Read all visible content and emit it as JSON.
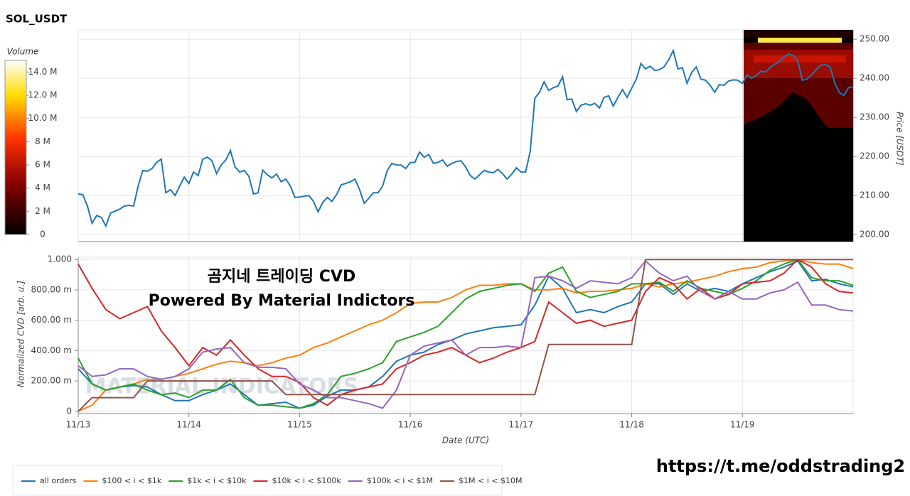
{
  "chart_data": [
    {
      "type": "line",
      "title": "SOL_USDT",
      "ylabel": "Price [USDT]",
      "yaxis_side": "right",
      "color": "#1f77b4",
      "grid": true,
      "xlim": [
        0,
        168
      ],
      "xticks": [
        0,
        24,
        48,
        72,
        96,
        120,
        144
      ],
      "ylim": [
        198.2,
        252.4
      ],
      "yticks": [
        {
          "value": 200,
          "label": "200.00"
        },
        {
          "value": 210,
          "label": "210.00"
        },
        {
          "value": 220,
          "label": "220.00"
        },
        {
          "value": 230,
          "label": "230.00"
        },
        {
          "value": 240,
          "label": "240.00"
        },
        {
          "value": 250,
          "label": "250.00"
        }
      ],
      "x": [
        0,
        1,
        2,
        3,
        4,
        5,
        6,
        7,
        8,
        9,
        10,
        11,
        12,
        13,
        14,
        15,
        16,
        17,
        18,
        19,
        20,
        21,
        22,
        23,
        24,
        25,
        26,
        27,
        28,
        29,
        30,
        31,
        32,
        33,
        34,
        35,
        36,
        37,
        38,
        39,
        40,
        41,
        42,
        43,
        44,
        45,
        46,
        47,
        48,
        49,
        50,
        51,
        52,
        53,
        54,
        55,
        56,
        57,
        58,
        59,
        60,
        61,
        62,
        63,
        64,
        65,
        66,
        67,
        68,
        69,
        70,
        71,
        72,
        73,
        74,
        75,
        76,
        77,
        78,
        79,
        80,
        81,
        82,
        83,
        84,
        85,
        86,
        87,
        88,
        89,
        90,
        91,
        92,
        93,
        94,
        95,
        96,
        97,
        98,
        99,
        100,
        101,
        102,
        103,
        104,
        105,
        106,
        107,
        108,
        109,
        110,
        111,
        112,
        113,
        114,
        115,
        116,
        117,
        118,
        119,
        120,
        121,
        122,
        123,
        124,
        125,
        126,
        127,
        128,
        129,
        130,
        131,
        132,
        133,
        134,
        135,
        136,
        137,
        138,
        139,
        140,
        141,
        142,
        143,
        144,
        145,
        146,
        147,
        148,
        149,
        150,
        151,
        152,
        153,
        154,
        155,
        156,
        157,
        158,
        159,
        160,
        161,
        162,
        163,
        164,
        165,
        166,
        167,
        168
      ],
      "values": [
        210.4,
        210.2,
        207.3,
        202.9,
        204.9,
        204.4,
        202.2,
        205.5,
        206.0,
        206.5,
        207.3,
        207.5,
        207.3,
        212.4,
        216.4,
        216.2,
        216.9,
        218.5,
        219.3,
        210.7,
        211.5,
        210.0,
        212.4,
        214.7,
        213.1,
        216.0,
        215.1,
        219.3,
        219.8,
        218.9,
        215.6,
        217.8,
        219.1,
        221.5,
        217.3,
        216.0,
        216.4,
        214.9,
        210.4,
        210.7,
        216.5,
        215.3,
        214.5,
        215.5,
        213.5,
        214.2,
        212.4,
        209.5,
        209.6,
        209.8,
        210.0,
        208.5,
        205.8,
        208.2,
        209.5,
        208.5,
        210.2,
        212.7,
        213.1,
        213.5,
        214.2,
        211.5,
        208.0,
        209.3,
        210.7,
        210.7,
        212.4,
        216.4,
        218.2,
        217.8,
        217.8,
        216.9,
        218.4,
        218.5,
        221.1,
        219.8,
        220.5,
        218.2,
        218.5,
        219.1,
        217.5,
        218.2,
        218.7,
        218.9,
        217.3,
        215.1,
        214.2,
        215.3,
        216.4,
        216.0,
        215.8,
        216.7,
        215.6,
        214.2,
        215.5,
        217.1,
        216.0,
        216.0,
        221.3,
        234.9,
        236.4,
        239.1,
        236.9,
        237.6,
        238.0,
        240.4,
        234.5,
        234.7,
        231.5,
        233.1,
        233.5,
        233.1,
        233.6,
        232.4,
        235.1,
        235.5,
        232.9,
        235.1,
        237.1,
        235.1,
        237.5,
        239.8,
        243.8,
        242.4,
        243.1,
        242.0,
        242.2,
        242.9,
        244.7,
        247.1,
        242.4,
        242.7,
        238.7,
        241.5,
        242.9,
        239.8,
        239.5,
        238.2,
        236.4,
        238.4,
        238.2,
        239.3,
        239.6,
        239.5,
        238.7,
        240.9,
        240.0,
        240.7,
        241.8,
        241.6,
        242.7,
        243.6,
        244.2,
        245.5,
        246.2,
        245.8,
        244.5,
        239.5,
        239.8,
        240.9,
        242.2,
        243.3,
        243.5,
        242.9,
        238.9,
        236.4,
        235.6,
        237.6,
        237.8
      ],
      "colorbar": {
        "title": "Volume",
        "lim": [
          0,
          15000000
        ],
        "ticks": [
          0,
          {
            "value": 2000000,
            "label": "2 M"
          },
          {
            "value": 4000000,
            "label": "4 M"
          },
          {
            "value": 6000000,
            "label": "6 M"
          },
          {
            "value": 8000000,
            "label": "8 M"
          },
          {
            "value": 10000000,
            "label": "10.0 M"
          },
          {
            "value": 12000000,
            "label": "12.0 M"
          },
          {
            "value": 14000000,
            "label": "14.0 M"
          }
        ]
      }
    },
    {
      "type": "line",
      "xlabel": "Date (UTC)",
      "ylabel": "Normalized CVD [arb. u.]",
      "grid": true,
      "legend": "bottom-left",
      "annotations": [
        "곰지네 트레이딩 CVD",
        "Powered By Material Indictors"
      ],
      "watermark": "MATERIAL INDICATORS",
      "xlim": [
        0,
        168
      ],
      "xticks": [
        {
          "value": 0,
          "label": "11/13"
        },
        {
          "value": 24,
          "label": "11/14"
        },
        {
          "value": 48,
          "label": "11/15"
        },
        {
          "value": 72,
          "label": "11/16"
        },
        {
          "value": 96,
          "label": "11/17"
        },
        {
          "value": 120,
          "label": "11/18"
        },
        {
          "value": 144,
          "label": "11/19"
        }
      ],
      "ylim": [
        -0.015,
        1.015
      ],
      "yticks": [
        0,
        {
          "value": 0.2,
          "label": "200.00 m"
        },
        {
          "value": 0.4,
          "label": "400.00 m"
        },
        {
          "value": 0.6,
          "label": "600.00 m"
        },
        {
          "value": 0.8,
          "label": "800.00 m"
        },
        {
          "value": 1,
          "label": "1.000"
        }
      ],
      "x": [
        0,
        3,
        6,
        9,
        12,
        15,
        18,
        21,
        24,
        27,
        30,
        33,
        36,
        39,
        42,
        45,
        48,
        51,
        54,
        57,
        60,
        63,
        66,
        69,
        72,
        75,
        78,
        81,
        84,
        87,
        90,
        93,
        96,
        99,
        102,
        105,
        108,
        111,
        114,
        117,
        120,
        123,
        126,
        129,
        132,
        135,
        138,
        141,
        144,
        147,
        150,
        153,
        156,
        159,
        162,
        165,
        168
      ],
      "series": [
        {
          "name": "all orders",
          "color": "#1f77b4",
          "values": [
            0.28,
            0.18,
            0.14,
            0.16,
            0.17,
            0.16,
            0.11,
            0.07,
            0.07,
            0.11,
            0.14,
            0.18,
            0.11,
            0.04,
            0.05,
            0.06,
            0.02,
            0.04,
            0.1,
            0.14,
            0.14,
            0.16,
            0.23,
            0.33,
            0.37,
            0.39,
            0.44,
            0.47,
            0.51,
            0.53,
            0.55,
            0.56,
            0.57,
            0.7,
            0.89,
            0.81,
            0.65,
            0.67,
            0.65,
            0.69,
            0.72,
            0.84,
            0.84,
            0.77,
            0.84,
            0.79,
            0.81,
            0.79,
            0.84,
            0.88,
            0.92,
            0.95,
            0.99,
            0.86,
            0.87,
            0.84,
            0.82
          ]
        },
        {
          "name": "$100 < i < $1k",
          "color": "#ff7f0e",
          "values": [
            0,
            0.04,
            0.14,
            0.16,
            0.18,
            0.21,
            0.21,
            0.23,
            0.25,
            0.28,
            0.31,
            0.33,
            0.32,
            0.3,
            0.32,
            0.35,
            0.37,
            0.42,
            0.45,
            0.49,
            0.53,
            0.57,
            0.6,
            0.65,
            0.71,
            0.72,
            0.72,
            0.75,
            0.8,
            0.83,
            0.83,
            0.84,
            0.84,
            0.8,
            0.8,
            0.81,
            0.78,
            0.79,
            0.79,
            0.8,
            0.81,
            0.84,
            0.82,
            0.84,
            0.85,
            0.87,
            0.89,
            0.92,
            0.94,
            0.95,
            0.98,
            0.99,
            1.0,
            0.98,
            0.97,
            0.97,
            0.94
          ]
        },
        {
          "name": "$1k < i < $10k",
          "color": "#2ca02c",
          "values": [
            0.35,
            0.18,
            0.14,
            0.16,
            0.18,
            0.14,
            0.11,
            0.12,
            0.09,
            0.14,
            0.14,
            0.21,
            0.09,
            0.04,
            0.04,
            0.03,
            0.02,
            0.05,
            0.11,
            0.23,
            0.25,
            0.28,
            0.32,
            0.46,
            0.49,
            0.52,
            0.56,
            0.65,
            0.74,
            0.79,
            0.81,
            0.83,
            0.84,
            0.79,
            0.91,
            0.95,
            0.79,
            0.75,
            0.77,
            0.79,
            0.84,
            0.84,
            0.85,
            0.79,
            0.86,
            0.81,
            0.79,
            0.77,
            0.81,
            0.86,
            0.93,
            0.97,
            1.0,
            0.88,
            0.86,
            0.86,
            0.83
          ]
        },
        {
          "name": "$10k < i < $100k",
          "color": "#d62728",
          "values": [
            0.97,
            0.81,
            0.67,
            0.61,
            0.65,
            0.69,
            0.53,
            0.42,
            0.3,
            0.42,
            0.37,
            0.47,
            0.37,
            0.28,
            0.23,
            0.23,
            0.19,
            0.09,
            0.04,
            0.11,
            0.14,
            0.16,
            0.18,
            0.28,
            0.32,
            0.37,
            0.39,
            0.42,
            0.37,
            0.32,
            0.35,
            0.39,
            0.42,
            0.46,
            0.72,
            0.65,
            0.58,
            0.6,
            0.56,
            0.58,
            0.6,
            0.79,
            0.88,
            0.84,
            0.74,
            0.81,
            0.74,
            0.77,
            0.84,
            0.85,
            0.86,
            0.91,
            1.0,
            0.95,
            0.84,
            0.79,
            0.78
          ]
        },
        {
          "name": "$100k < i < $1M",
          "color": "#9467bd",
          "values": [
            0.3,
            0.23,
            0.24,
            0.28,
            0.28,
            0.23,
            0.21,
            0.23,
            0.28,
            0.39,
            0.41,
            0.42,
            0.32,
            0.29,
            0.29,
            0.28,
            0.18,
            0.14,
            0.09,
            0.09,
            0.07,
            0.05,
            0.02,
            0.14,
            0.37,
            0.43,
            0.45,
            0.47,
            0.37,
            0.42,
            0.42,
            0.43,
            0.42,
            0.88,
            0.89,
            0.86,
            0.81,
            0.86,
            0.85,
            0.84,
            0.88,
            0.99,
            0.91,
            0.86,
            0.89,
            0.79,
            0.74,
            0.79,
            0.74,
            0.74,
            0.78,
            0.8,
            0.85,
            0.7,
            0.7,
            0.67,
            0.66
          ]
        },
        {
          "name": "$1M < i < $10M",
          "color": "#8c564b",
          "values": [
            0,
            0.09,
            0.09,
            0.09,
            0.09,
            0.2,
            0.2,
            0.2,
            0.2,
            0.2,
            0.2,
            0.2,
            0.2,
            0.2,
            0.2,
            0.11,
            0.11,
            0.11,
            0.11,
            0.11,
            0.11,
            0.11,
            0.11,
            0.11,
            0.11,
            0.11,
            0.11,
            0.11,
            0.11,
            0.11,
            0.11,
            0.11,
            0.11,
            0.11,
            0.44,
            0.44,
            0.44,
            0.44,
            0.44,
            0.44,
            0.44,
            1.0,
            1.0,
            1.0,
            1.0,
            1.0,
            1.0,
            1.0,
            1.0,
            1.0,
            1.0,
            1.0,
            1.0,
            1.0,
            1.0,
            1.0,
            1.0
          ]
        }
      ]
    }
  ],
  "footer_link": "https://t.me/oddstrading2"
}
